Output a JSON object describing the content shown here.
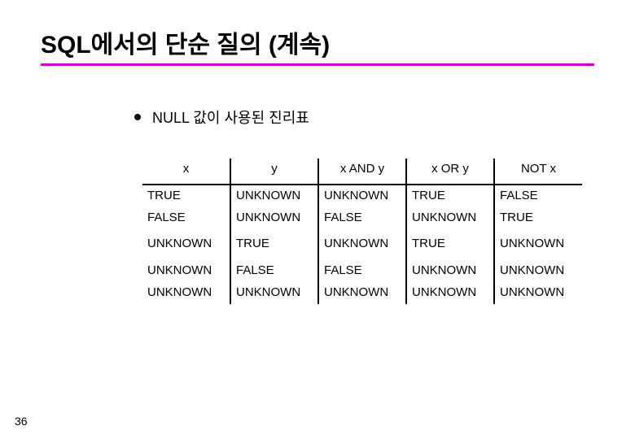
{
  "title": "SQL에서의 단순 질의 (계속)",
  "bullet": "NULL 값이 사용된 진리표",
  "headers": [
    "x",
    "y",
    "x AND y",
    "x OR y",
    "NOT x"
  ],
  "groups": [
    [
      [
        "TRUE",
        "UNKNOWN",
        "UNKNOWN",
        "TRUE",
        "FALSE"
      ],
      [
        "FALSE",
        "UNKNOWN",
        "FALSE",
        "UNKNOWN",
        "TRUE"
      ]
    ],
    [
      [
        "UNKNOWN",
        "TRUE",
        "UNKNOWN",
        "TRUE",
        "UNKNOWN"
      ]
    ],
    [
      [
        "UNKNOWN",
        "FALSE",
        "FALSE",
        "UNKNOWN",
        "UNKNOWN"
      ],
      [
        "UNKNOWN",
        "UNKNOWN",
        "UNKNOWN",
        "UNKNOWN",
        "UNKNOWN"
      ]
    ]
  ],
  "page_num": "36",
  "colors": {
    "accent": "#cc00cc",
    "text": "#000000",
    "background": "#ffffff"
  },
  "col_widths": [
    "20%",
    "20%",
    "20%",
    "20%",
    "20%"
  ]
}
